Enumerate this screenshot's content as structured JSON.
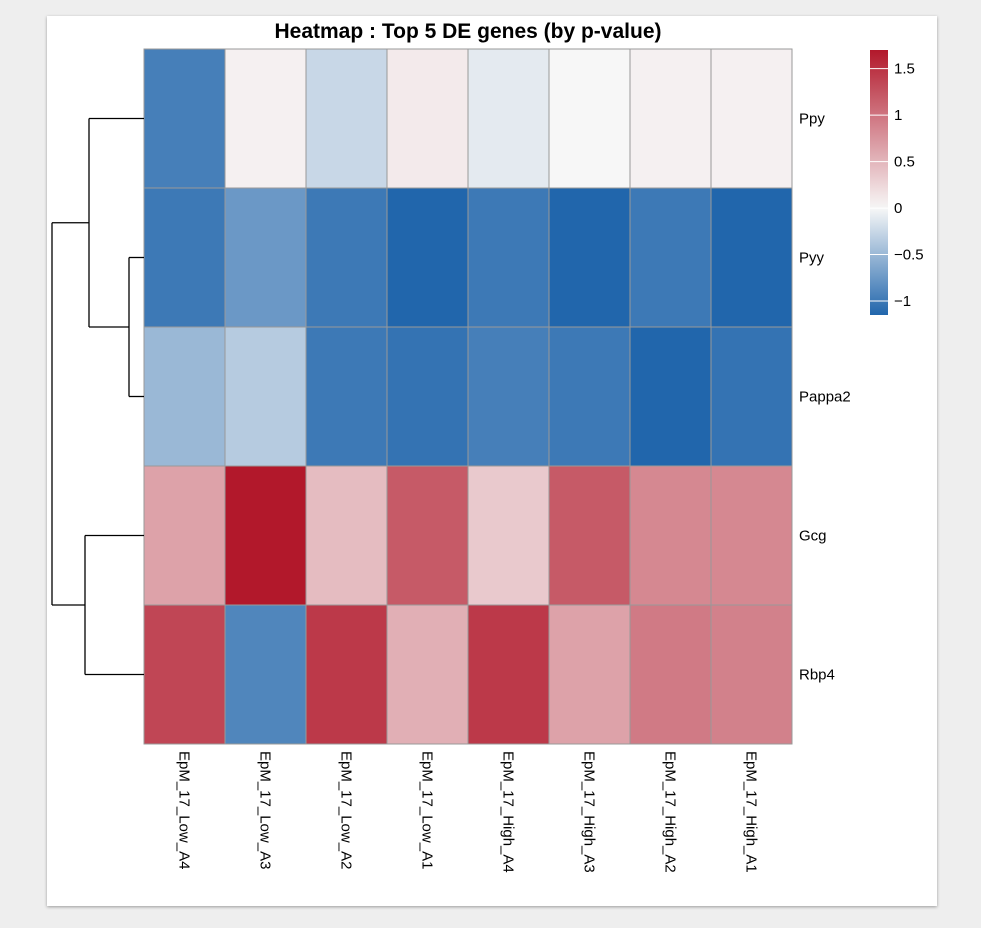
{
  "chart_data": {
    "type": "heatmap",
    "title": "Heatmap : Top 5 DE genes (by p-value)",
    "rows": [
      "Ppy",
      "Pyy",
      "Pappa2",
      "Gcg",
      "Rbp4"
    ],
    "columns": [
      "EpM_17_Low_A4",
      "EpM_17_Low_A3",
      "EpM_17_Low_A2",
      "EpM_17_Low_A1",
      "EpM_17_High_A4",
      "EpM_17_High_A3",
      "EpM_17_High_A2",
      "EpM_17_High_A1"
    ],
    "values": [
      [
        -0.95,
        0.05,
        -0.25,
        0.1,
        -0.1,
        0.0,
        0.05,
        0.05
      ],
      [
        -1.0,
        -0.75,
        -1.0,
        -1.15,
        -1.0,
        -1.2,
        -1.0,
        -1.2
      ],
      [
        -0.5,
        -0.35,
        -1.0,
        -1.05,
        -0.95,
        -1.0,
        -1.2,
        -1.05
      ],
      [
        0.65,
        1.7,
        0.45,
        1.2,
        0.35,
        1.2,
        0.85,
        0.85
      ],
      [
        1.35,
        -0.9,
        1.45,
        0.55,
        1.45,
        0.65,
        0.95,
        0.9
      ]
    ],
    "color_scale": {
      "min": -1.15,
      "max": 1.7,
      "low": "#2166ac",
      "mid": "#f7f7f7",
      "high": "#b2182b"
    },
    "legend_ticks": [
      1.5,
      1,
      0.5,
      0,
      -0.5,
      -1
    ],
    "legend_tick_labels": [
      "1.5",
      "1",
      "0.5",
      "0",
      "−0.5",
      "−1"
    ],
    "legend_placement": "top-right",
    "row_dendrogram": true,
    "cell_border_color": "#999999"
  }
}
